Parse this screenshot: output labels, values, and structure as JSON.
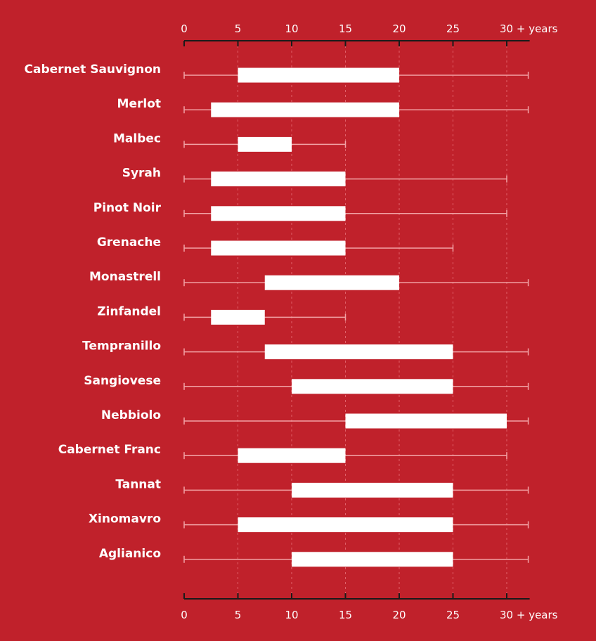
{
  "colors": {
    "background": "#c0212b",
    "bar": "#ffffff",
    "whisker": "#f2a3a6",
    "axis": "#1a1a1a",
    "grid": "#e0616a"
  },
  "chart_data": {
    "type": "bar",
    "orientation": "horizontal",
    "title": "",
    "xlabel": "",
    "ylabel": "",
    "xlim": [
      0,
      32
    ],
    "x_ticks": [
      0,
      5,
      10,
      15,
      20,
      25,
      30
    ],
    "x_tick_labels": [
      "0",
      "5",
      "10",
      "15",
      "20",
      "25",
      "30 + years"
    ],
    "grid": true,
    "legend": "none",
    "categories": [
      "Cabernet Sauvignon",
      "Merlot",
      "Malbec",
      "Syrah",
      "Pinot Noir",
      "Grenache",
      "Monastrell",
      "Zinfandel",
      "Tempranillo",
      "Sangiovese",
      "Nebbiolo",
      "Cabernet Franc",
      "Tannat",
      "Xinomavro",
      "Aglianico"
    ],
    "bar_start": [
      5,
      2.5,
      5,
      2.5,
      2.5,
      2.5,
      7.5,
      2.5,
      7.5,
      10,
      15,
      5,
      10,
      5,
      10
    ],
    "bar_end": [
      20,
      20,
      10,
      15,
      15,
      15,
      20,
      7.5,
      25,
      25,
      30,
      15,
      25,
      25,
      25
    ],
    "whisker_min": [
      0,
      0,
      0,
      0,
      0,
      0,
      0,
      0,
      0,
      0,
      0,
      0,
      0,
      0,
      0
    ],
    "whisker_max": [
      32,
      32,
      15,
      30,
      30,
      25,
      32,
      15,
      32,
      32,
      32,
      30,
      32,
      32,
      32
    ]
  }
}
